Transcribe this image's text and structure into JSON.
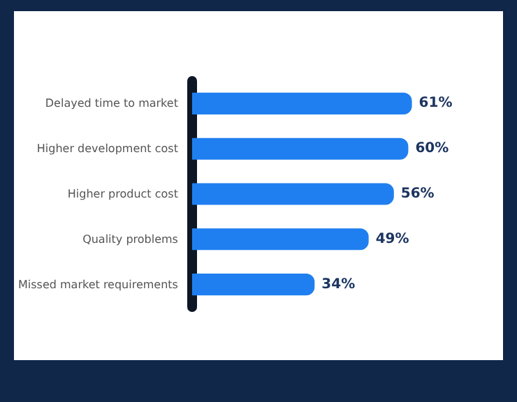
{
  "chart_data": {
    "type": "bar",
    "orientation": "horizontal",
    "categories": [
      "Delayed time to market",
      "Higher development cost",
      "Higher product cost",
      "Quality problems",
      "Missed market requirements"
    ],
    "values": [
      61,
      60,
      56,
      49,
      34
    ],
    "value_labels": [
      "61%",
      "60%",
      "56%",
      "49%",
      "34%"
    ],
    "color": "#1f7ff0"
  }
}
